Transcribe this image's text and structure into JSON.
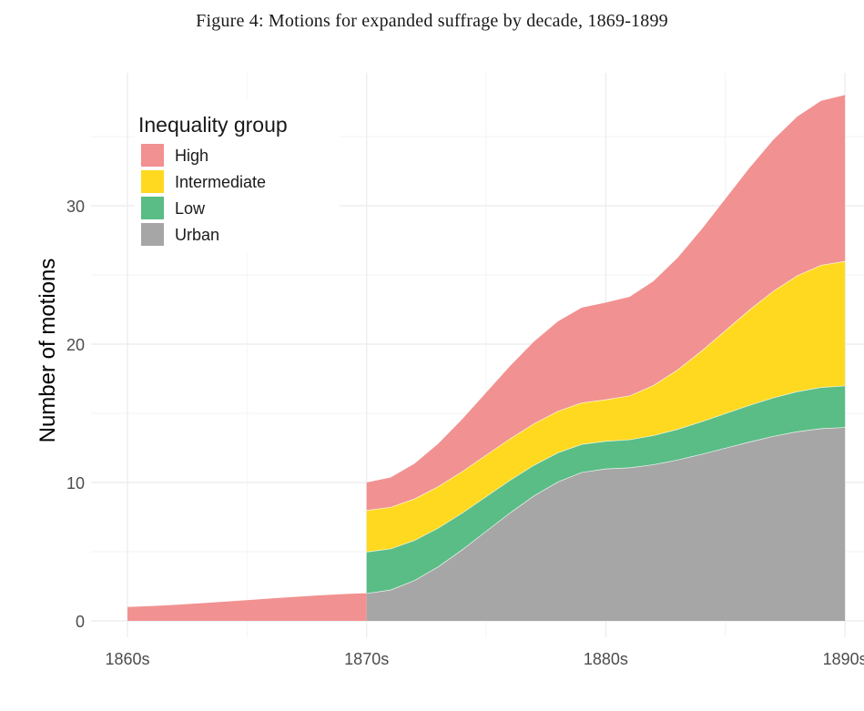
{
  "figure": {
    "title": "Figure 4: Motions for expanded suffrage by decade, 1869-1899"
  },
  "chart_data": {
    "type": "area",
    "stacked": true,
    "title": "Figure 4: Motions for expanded suffrage by decade, 1869-1899",
    "xlabel": "",
    "ylabel": "Number of motions",
    "x": [
      "1860s",
      "1870s",
      "1880s",
      "1890s"
    ],
    "x_ticks": [
      "1860s",
      "1870s",
      "1880s",
      "1890s"
    ],
    "y_ticks": [
      0,
      10,
      20,
      30
    ],
    "ylim": [
      0,
      38
    ],
    "grid": true,
    "legend": {
      "title": "Inequality group",
      "position": "top-left",
      "entries": [
        "High",
        "Intermediate",
        "Low",
        "Urban"
      ]
    },
    "series": [
      {
        "name": "Urban",
        "color": "#A6A6A6",
        "values": [
          0,
          2,
          11,
          14
        ]
      },
      {
        "name": "Low",
        "color": "#59BD85",
        "values": [
          0,
          3,
          2,
          3
        ]
      },
      {
        "name": "Intermediate",
        "color": "#FFD920",
        "values": [
          0,
          3,
          3,
          9
        ]
      },
      {
        "name": "High",
        "color": "#F29191",
        "values": [
          1,
          2,
          7,
          12
        ]
      }
    ],
    "notes": "1860s shows only High group (approx. 1 rising to 2 before 1870s); 1870s-1890s stacked totals approx. 10, 23, 38"
  }
}
